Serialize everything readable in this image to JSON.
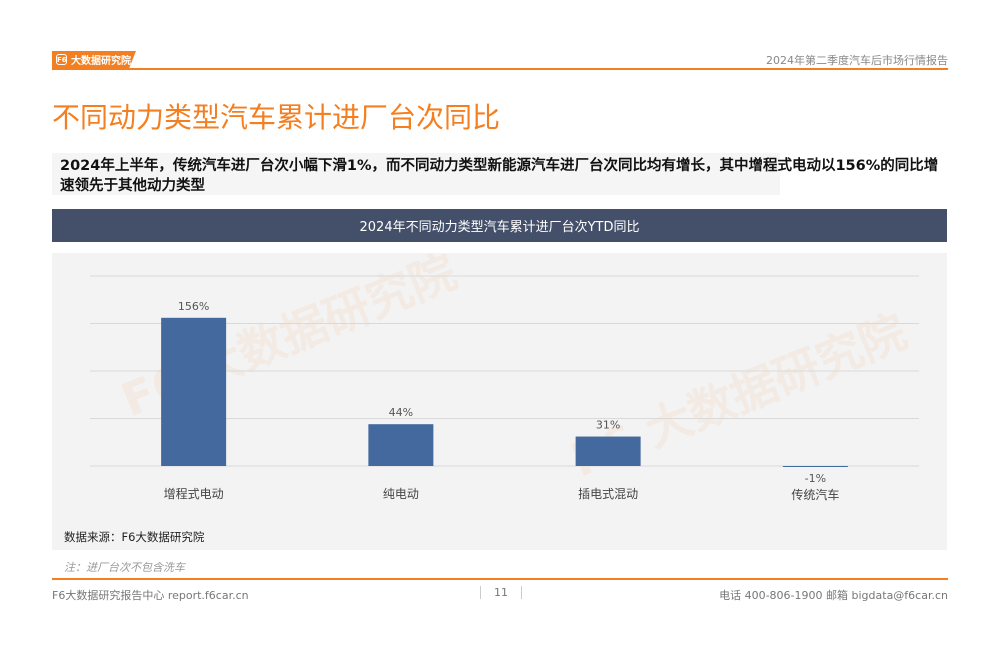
{
  "header": {
    "logo_text": "大数据研究院",
    "report_title": "2024年第二季度汽车后市场行情报告"
  },
  "page_title": "不同动力类型汽车累计进厂台次同比",
  "summary": "2024年上半年，传统汽车进厂台次小幅下滑1%，而不同动力类型新能源汽车进厂台次同比均有增长，其中增程式电动以156%的同比增速领先于其他动力类型",
  "chart_header": "2024年不同动力类型汽车累计进厂台次YTD同比",
  "chart_data": {
    "type": "bar",
    "title": "2024年不同动力类型汽车累计进厂台次YTD同比",
    "categories": [
      "增程式电动",
      "纯电动",
      "插电式混动",
      "传统汽车"
    ],
    "values": [
      156,
      44,
      31,
      -1
    ],
    "value_labels": [
      "156%",
      "44%",
      "31%",
      "-1%"
    ],
    "unit": "%",
    "ylim": [
      0,
      200
    ],
    "grid": true,
    "bar_color": "#44699f"
  },
  "source": "数据来源：F6大数据研究院",
  "note": "注：进厂台次不包含洗车",
  "footer": {
    "left": "F6大数据研究报告中心 report.f6car.cn",
    "page_number": "11",
    "right": "电话 400-806-1900  邮箱 bigdata@f6car.cn"
  }
}
